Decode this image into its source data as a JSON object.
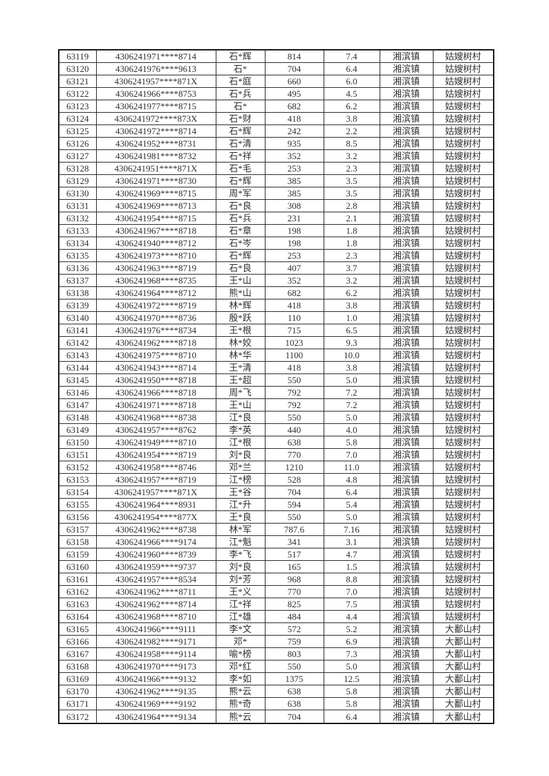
{
  "colors": {
    "grid": "#2e2e2e",
    "outer_border": "#1a1a1a",
    "text": "#303030",
    "page_background": "#ffffff"
  },
  "table": {
    "rows": [
      [
        "63119",
        "4306241971****8714",
        "石*辉",
        "814",
        "7.4",
        "湘滨镇",
        "姑嫂树村"
      ],
      [
        "63120",
        "4306241976****9613",
        "石*",
        "704",
        "6.4",
        "湘滨镇",
        "姑嫂树村"
      ],
      [
        "63121",
        "4306241957****871X",
        "石*庭",
        "660",
        "6.0",
        "湘滨镇",
        "姑嫂树村"
      ],
      [
        "63122",
        "4306241966****8753",
        "石*兵",
        "495",
        "4.5",
        "湘滨镇",
        "姑嫂树村"
      ],
      [
        "63123",
        "4306241977****8715",
        "石*",
        "682",
        "6.2",
        "湘滨镇",
        "姑嫂树村"
      ],
      [
        "63124",
        "4306241972****873X",
        "石*财",
        "418",
        "3.8",
        "湘滨镇",
        "姑嫂树村"
      ],
      [
        "63125",
        "4306241972****8714",
        "石*辉",
        "242",
        "2.2",
        "湘滨镇",
        "姑嫂树村"
      ],
      [
        "63126",
        "4306241952****8731",
        "石*清",
        "935",
        "8.5",
        "湘滨镇",
        "姑嫂树村"
      ],
      [
        "63127",
        "4306241981****8732",
        "石*祥",
        "352",
        "3.2",
        "湘滨镇",
        "姑嫂树村"
      ],
      [
        "63128",
        "4306241951****871X",
        "石*毛",
        "253",
        "2.3",
        "湘滨镇",
        "姑嫂树村"
      ],
      [
        "63129",
        "4306241971****8730",
        "石*辉",
        "385",
        "3.5",
        "湘滨镇",
        "姑嫂树村"
      ],
      [
        "63130",
        "4306241969****8715",
        "周*军",
        "385",
        "3.5",
        "湘滨镇",
        "姑嫂树村"
      ],
      [
        "63131",
        "4306241969****8713",
        "石*良",
        "308",
        "2.8",
        "湘滨镇",
        "姑嫂树村"
      ],
      [
        "63132",
        "4306241954****8715",
        "石*兵",
        "231",
        "2.1",
        "湘滨镇",
        "姑嫂树村"
      ],
      [
        "63133",
        "4306241967****8718",
        "石*章",
        "198",
        "1.8",
        "湘滨镇",
        "姑嫂树村"
      ],
      [
        "63134",
        "4306241940****8712",
        "石*岑",
        "198",
        "1.8",
        "湘滨镇",
        "姑嫂树村"
      ],
      [
        "63135",
        "4306241973****8710",
        "石*辉",
        "253",
        "2.3",
        "湘滨镇",
        "姑嫂树村"
      ],
      [
        "63136",
        "4306241963****8719",
        "石*良",
        "407",
        "3.7",
        "湘滨镇",
        "姑嫂树村"
      ],
      [
        "63137",
        "4306241968****8735",
        "王*山",
        "352",
        "3.2",
        "湘滨镇",
        "姑嫂树村"
      ],
      [
        "63138",
        "4306241964****8712",
        "熊*山",
        "682",
        "6.2",
        "湘滨镇",
        "姑嫂树村"
      ],
      [
        "63139",
        "4306241972****8719",
        "林*辉",
        "418",
        "3.8",
        "湘滨镇",
        "姑嫂树村"
      ],
      [
        "63140",
        "4306241970****8736",
        "殷*跃",
        "110",
        "1.0",
        "湘滨镇",
        "姑嫂树村"
      ],
      [
        "63141",
        "4306241976****8734",
        "王*根",
        "715",
        "6.5",
        "湘滨镇",
        "姑嫂树村"
      ],
      [
        "63142",
        "4306241962****8718",
        "林*姣",
        "1023",
        "9.3",
        "湘滨镇",
        "姑嫂树村"
      ],
      [
        "63143",
        "4306241975****8710",
        "林*华",
        "1100",
        "10.0",
        "湘滨镇",
        "姑嫂树村"
      ],
      [
        "63144",
        "4306241943****8714",
        "王*清",
        "418",
        "3.8",
        "湘滨镇",
        "姑嫂树村"
      ],
      [
        "63145",
        "4306241950****8718",
        "王*超",
        "550",
        "5.0",
        "湘滨镇",
        "姑嫂树村"
      ],
      [
        "63146",
        "4306241966****8718",
        "周*飞",
        "792",
        "7.2",
        "湘滨镇",
        "姑嫂树村"
      ],
      [
        "63147",
        "4306241971****8718",
        "王*山",
        "792",
        "7.2",
        "湘滨镇",
        "姑嫂树村"
      ],
      [
        "63148",
        "4306241968****8738",
        "江*良",
        "550",
        "5.0",
        "湘滨镇",
        "姑嫂树村"
      ],
      [
        "63149",
        "4306241957****8762",
        "李*英",
        "440",
        "4.0",
        "湘滨镇",
        "姑嫂树村"
      ],
      [
        "63150",
        "4306241949****8710",
        "江*根",
        "638",
        "5.8",
        "湘滨镇",
        "姑嫂树村"
      ],
      [
        "63151",
        "4306241954****8719",
        "刘*良",
        "770",
        "7.0",
        "湘滨镇",
        "姑嫂树村"
      ],
      [
        "63152",
        "4306241958****8746",
        "邓*兰",
        "1210",
        "11.0",
        "湘滨镇",
        "姑嫂树村"
      ],
      [
        "63153",
        "4306241957****8719",
        "江*榜",
        "528",
        "4.8",
        "湘滨镇",
        "姑嫂树村"
      ],
      [
        "63154",
        "4306241957****871X",
        "王*谷",
        "704",
        "6.4",
        "湘滨镇",
        "姑嫂树村"
      ],
      [
        "63155",
        "4306241964****8931",
        "江*升",
        "594",
        "5.4",
        "湘滨镇",
        "姑嫂树村"
      ],
      [
        "63156",
        "4306241954****877X",
        "王*良",
        "550",
        "5.0",
        "湘滨镇",
        "姑嫂树村"
      ],
      [
        "63157",
        "4306241962****8738",
        "林*军",
        "787.6",
        "7.16",
        "湘滨镇",
        "姑嫂树村"
      ],
      [
        "63158",
        "4306241966****9174",
        "江*魁",
        "341",
        "3.1",
        "湘滨镇",
        "姑嫂树村"
      ],
      [
        "63159",
        "4306241960****8739",
        "李*飞",
        "517",
        "4.7",
        "湘滨镇",
        "姑嫂树村"
      ],
      [
        "63160",
        "4306241959****9737",
        "刘*良",
        "165",
        "1.5",
        "湘滨镇",
        "姑嫂树村"
      ],
      [
        "63161",
        "4306241957****8534",
        "刘*芳",
        "968",
        "8.8",
        "湘滨镇",
        "姑嫂树村"
      ],
      [
        "63162",
        "4306241962****8711",
        "王*义",
        "770",
        "7.0",
        "湘滨镇",
        "姑嫂树村"
      ],
      [
        "63163",
        "4306241962****8714",
        "江*祥",
        "825",
        "7.5",
        "湘滨镇",
        "姑嫂树村"
      ],
      [
        "63164",
        "4306241968****8710",
        "江*雄",
        "484",
        "4.4",
        "湘滨镇",
        "姑嫂树村"
      ],
      [
        "63165",
        "4306241966****9111",
        "李*文",
        "572",
        "5.2",
        "湘滨镇",
        "大鄱山村"
      ],
      [
        "63166",
        "4306241982****9171",
        "邓*",
        "759",
        "6.9",
        "湘滨镇",
        "大鄱山村"
      ],
      [
        "63167",
        "4306241958****9114",
        "喻*榜",
        "803",
        "7.3",
        "湘滨镇",
        "大鄱山村"
      ],
      [
        "63168",
        "4306241970****9173",
        "邓*红",
        "550",
        "5.0",
        "湘滨镇",
        "大鄱山村"
      ],
      [
        "63169",
        "4306241966****9132",
        "李*如",
        "1375",
        "12.5",
        "湘滨镇",
        "大鄱山村"
      ],
      [
        "63170",
        "4306241962****9135",
        "熊*云",
        "638",
        "5.8",
        "湘滨镇",
        "大鄱山村"
      ],
      [
        "63171",
        "4306241969****9192",
        "熊*奇",
        "638",
        "5.8",
        "湘滨镇",
        "大鄱山村"
      ],
      [
        "63172",
        "4306241964****9134",
        "熊*云",
        "704",
        "6.4",
        "湘滨镇",
        "大鄱山村"
      ]
    ]
  }
}
